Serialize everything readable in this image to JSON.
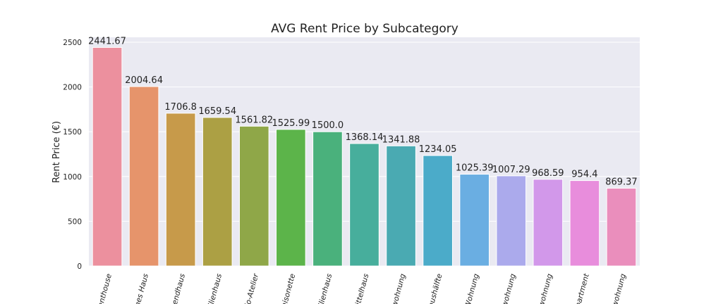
{
  "chart_data": {
    "type": "bar",
    "title": "AVG Rent Price by Subcategory",
    "xlabel": "",
    "ylabel": "Rent Price (€)",
    "ylim": [
      0,
      2500
    ],
    "yticks": [
      "0",
      "500",
      "1000",
      "1500",
      "2000",
      "2500"
    ],
    "grid": true,
    "categories": [
      "enthouse",
      "ges Haus",
      "endhaus",
      "ilienhaus",
      "io-Atelier",
      "aisonette",
      "ilienhaus",
      "ittelhaus",
      "wohnung",
      "aushälfte",
      "Wohnung",
      "wohnung",
      "wohnung",
      "partment",
      "wohnung"
    ],
    "values": [
      2441.67,
      2004.64,
      1706.8,
      1659.54,
      1561.82,
      1525.99,
      1500.0,
      1368.14,
      1341.88,
      1234.05,
      1025.39,
      1007.29,
      968.59,
      954.4,
      869.37
    ],
    "value_labels": [
      "2441.67",
      "2004.64",
      "1706.8",
      "1659.54",
      "1561.82",
      "1525.99",
      "1500.0",
      "1368.14",
      "1341.88",
      "1234.05",
      "1025.39",
      "1007.29",
      "968.59",
      "954.4",
      "869.37"
    ],
    "colors": [
      "#ec909e",
      "#e6946b",
      "#c79a4a",
      "#aca044",
      "#8fa748",
      "#5cb44a",
      "#4ab17c",
      "#47ae9c",
      "#4aaab2",
      "#4babc9",
      "#6aaee2",
      "#abaaec",
      "#d298ea",
      "#e88ddc",
      "#ea8ebc"
    ]
  }
}
